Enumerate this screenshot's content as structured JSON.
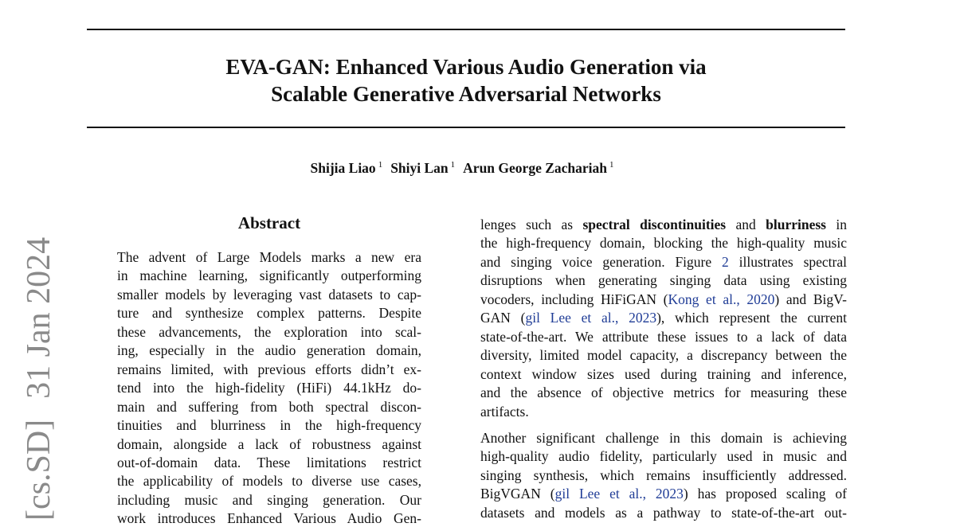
{
  "sidebar": {
    "category": "[cs.SD]",
    "date": "31 Jan 2024"
  },
  "header": {
    "title_lines": [
      "EVA-GAN: Enhanced Various Audio Generation via",
      "Scalable Generative Adversarial Networks"
    ]
  },
  "authors": [
    {
      "name": "Shijia Liao",
      "affiliation": "1"
    },
    {
      "name": "Shiyi Lan",
      "affiliation": "1"
    },
    {
      "name": "Arun George Zachariah",
      "affiliation": "1"
    }
  ],
  "abstract": {
    "heading": "Abstract",
    "lines": [
      "The advent of Large Models marks a new era",
      "in machine learning, significantly outperforming",
      "smaller models by leveraging vast datasets to cap-",
      "ture and synthesize complex patterns. Despite",
      "these advancements, the exploration into scal-",
      "ing, especially in the audio generation domain,",
      "remains limited, with previous efforts didn’t ex-",
      "tend into the high-fidelity (HiFi) 44.1kHz do-",
      "main and suffering from both spectral discon-",
      "tinuities and blurriness in the high-frequency",
      "domain, alongside a lack of robustness against",
      "out-of-domain data. These limitations restrict",
      "the applicability of models to diverse use cases,",
      "including music and singing generation. Our",
      "work introduces Enhanced Various Audio Gen-"
    ]
  },
  "body": {
    "paragraphs": [
      {
        "lines": [
          [
            "lenges such as ",
            {
              "bold": "spectral discontinuities"
            },
            " and ",
            {
              "bold": "blurriness"
            },
            " in"
          ],
          "the high-frequency domain, blocking the high-quality music",
          [
            "and singing voice generation. Figure ",
            {
              "link": "2"
            },
            " illustrates spectral"
          ],
          "disruptions when generating singing data using existing",
          [
            "vocoders, including HiFiGAN (",
            {
              "link": "Kong et al., 2020"
            },
            ") and BigV-"
          ],
          [
            "GAN (",
            {
              "link": "gil Lee et al., 2023"
            },
            "), which represent the current"
          ],
          "state-of-the-art. We attribute these issues to a lack of data",
          "diversity, limited model capacity, a discrepancy between the",
          "context window sizes used during training and inference,",
          "and the absence of objective metrics for measuring these",
          "artifacts."
        ]
      },
      {
        "lines": [
          "Another significant challenge in this domain is achieving",
          "high-quality audio fidelity, particularly used in music and",
          "singing synthesis, which remains insufficiently addressed.",
          [
            "BigVGAN (",
            {
              "link": "gil Lee et al., 2023"
            },
            ") has proposed scaling of"
          ],
          "datasets and models as a pathway to state-of-the-art out-"
        ]
      }
    ]
  }
}
